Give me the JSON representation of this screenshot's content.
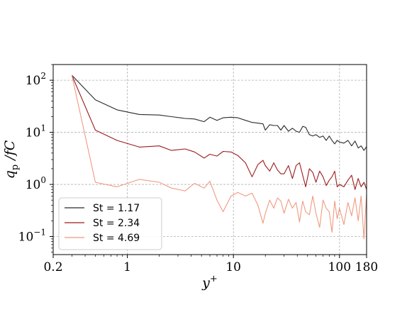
{
  "chart_data": {
    "type": "line",
    "x_scale": "log",
    "y_scale": "log",
    "xlim": [
      0.2,
      180
    ],
    "ylim": [
      0.045,
      200
    ],
    "grid": true,
    "legend_position": "bottom-left",
    "xlabel": "y⁺",
    "ylabel": "q_p /fC",
    "x_ticks": [
      {
        "value": 0.2,
        "label": "0.2"
      },
      {
        "value": 1,
        "label": "1"
      },
      {
        "value": 10,
        "label": "10"
      },
      {
        "value": 100,
        "label": "100"
      },
      {
        "value": 180,
        "label": "180"
      }
    ],
    "y_ticks": [
      {
        "value": 0.1,
        "base": "10",
        "exp": "−1"
      },
      {
        "value": 1,
        "base": "10",
        "exp": "0"
      },
      {
        "value": 10,
        "base": "10",
        "exp": "1"
      },
      {
        "value": 100,
        "base": "10",
        "exp": "2"
      }
    ],
    "series": [
      {
        "name": "St = 1.17",
        "color": "#2a2a2a",
        "x": [
          0.3,
          0.5,
          0.8,
          1.3,
          2.0,
          2.6,
          3.5,
          4.3,
          5.3,
          6.0,
          7.0,
          8.0,
          9.5,
          11,
          13,
          15,
          17,
          19,
          20,
          22,
          24,
          26,
          28,
          30,
          33,
          36,
          39,
          42,
          45,
          48,
          52,
          56,
          60,
          65,
          70,
          75,
          80,
          85,
          90,
          95,
          100,
          110,
          120,
          130,
          140,
          150,
          160,
          170,
          180
        ],
        "y": [
          125,
          42,
          27,
          22,
          21.5,
          20,
          18.5,
          18,
          16,
          19.5,
          17,
          19,
          19.5,
          19,
          17,
          15.5,
          15,
          14.5,
          11,
          14,
          13.5,
          13.5,
          11,
          13.5,
          10.5,
          12,
          10.5,
          10,
          13,
          12.5,
          9,
          8.5,
          9,
          8,
          8.5,
          7,
          8.5,
          7,
          6,
          7,
          6.5,
          6.2,
          7,
          5.5,
          6.8,
          5,
          5.5,
          4.5,
          5.3
        ]
      },
      {
        "name": "St = 2.34",
        "color": "#9b1c1c",
        "x": [
          0.3,
          0.5,
          0.8,
          1.3,
          2.0,
          2.6,
          3.5,
          4.3,
          5.3,
          6.0,
          7.0,
          8.0,
          9.5,
          11,
          13,
          15,
          17,
          19,
          20,
          22,
          24,
          26,
          28,
          30,
          33,
          36,
          39,
          42,
          45,
          48,
          52,
          56,
          60,
          65,
          70,
          75,
          80,
          85,
          90,
          95,
          100,
          110,
          120,
          130,
          140,
          150,
          160,
          170,
          180
        ],
        "y": [
          125,
          11,
          7,
          5.2,
          5.5,
          4.5,
          4.8,
          4.2,
          3.2,
          3.8,
          3.5,
          4.3,
          4.2,
          3.6,
          2.6,
          1.4,
          2.4,
          2.9,
          2.3,
          1.8,
          2.6,
          1.9,
          1.6,
          1.6,
          2.3,
          1.3,
          2.3,
          2.6,
          1.5,
          0.9,
          2.0,
          1.7,
          1.1,
          1.8,
          1.4,
          0.95,
          1.2,
          1.4,
          1.8,
          0.9,
          1.0,
          0.9,
          1.2,
          1.5,
          0.8,
          1.3,
          0.9,
          1.1,
          0.8
        ]
      },
      {
        "name": "St = 4.69",
        "color": "#f09a80",
        "x": [
          0.3,
          0.5,
          0.8,
          1.3,
          2.0,
          2.6,
          3.5,
          4.3,
          5.3,
          6.0,
          7.0,
          8.0,
          9.5,
          11,
          13,
          15,
          17,
          19,
          20,
          22,
          24,
          26,
          28,
          30,
          33,
          36,
          39,
          42,
          45,
          48,
          52,
          56,
          60,
          65,
          70,
          75,
          80,
          85,
          90,
          95,
          100,
          110,
          120,
          130,
          140,
          150,
          160,
          170,
          180
        ],
        "y": [
          125,
          1.1,
          0.9,
          1.25,
          1.1,
          0.85,
          0.75,
          1.05,
          0.85,
          1.15,
          0.5,
          0.3,
          0.6,
          0.7,
          0.6,
          0.68,
          0.4,
          0.18,
          0.28,
          0.5,
          0.35,
          0.55,
          0.48,
          0.28,
          0.52,
          0.35,
          0.45,
          0.19,
          0.48,
          0.3,
          0.26,
          0.6,
          0.28,
          0.15,
          0.5,
          0.35,
          0.3,
          0.12,
          0.48,
          0.22,
          0.35,
          0.17,
          0.45,
          0.25,
          0.55,
          0.2,
          0.6,
          0.09,
          0.65
        ]
      }
    ]
  }
}
